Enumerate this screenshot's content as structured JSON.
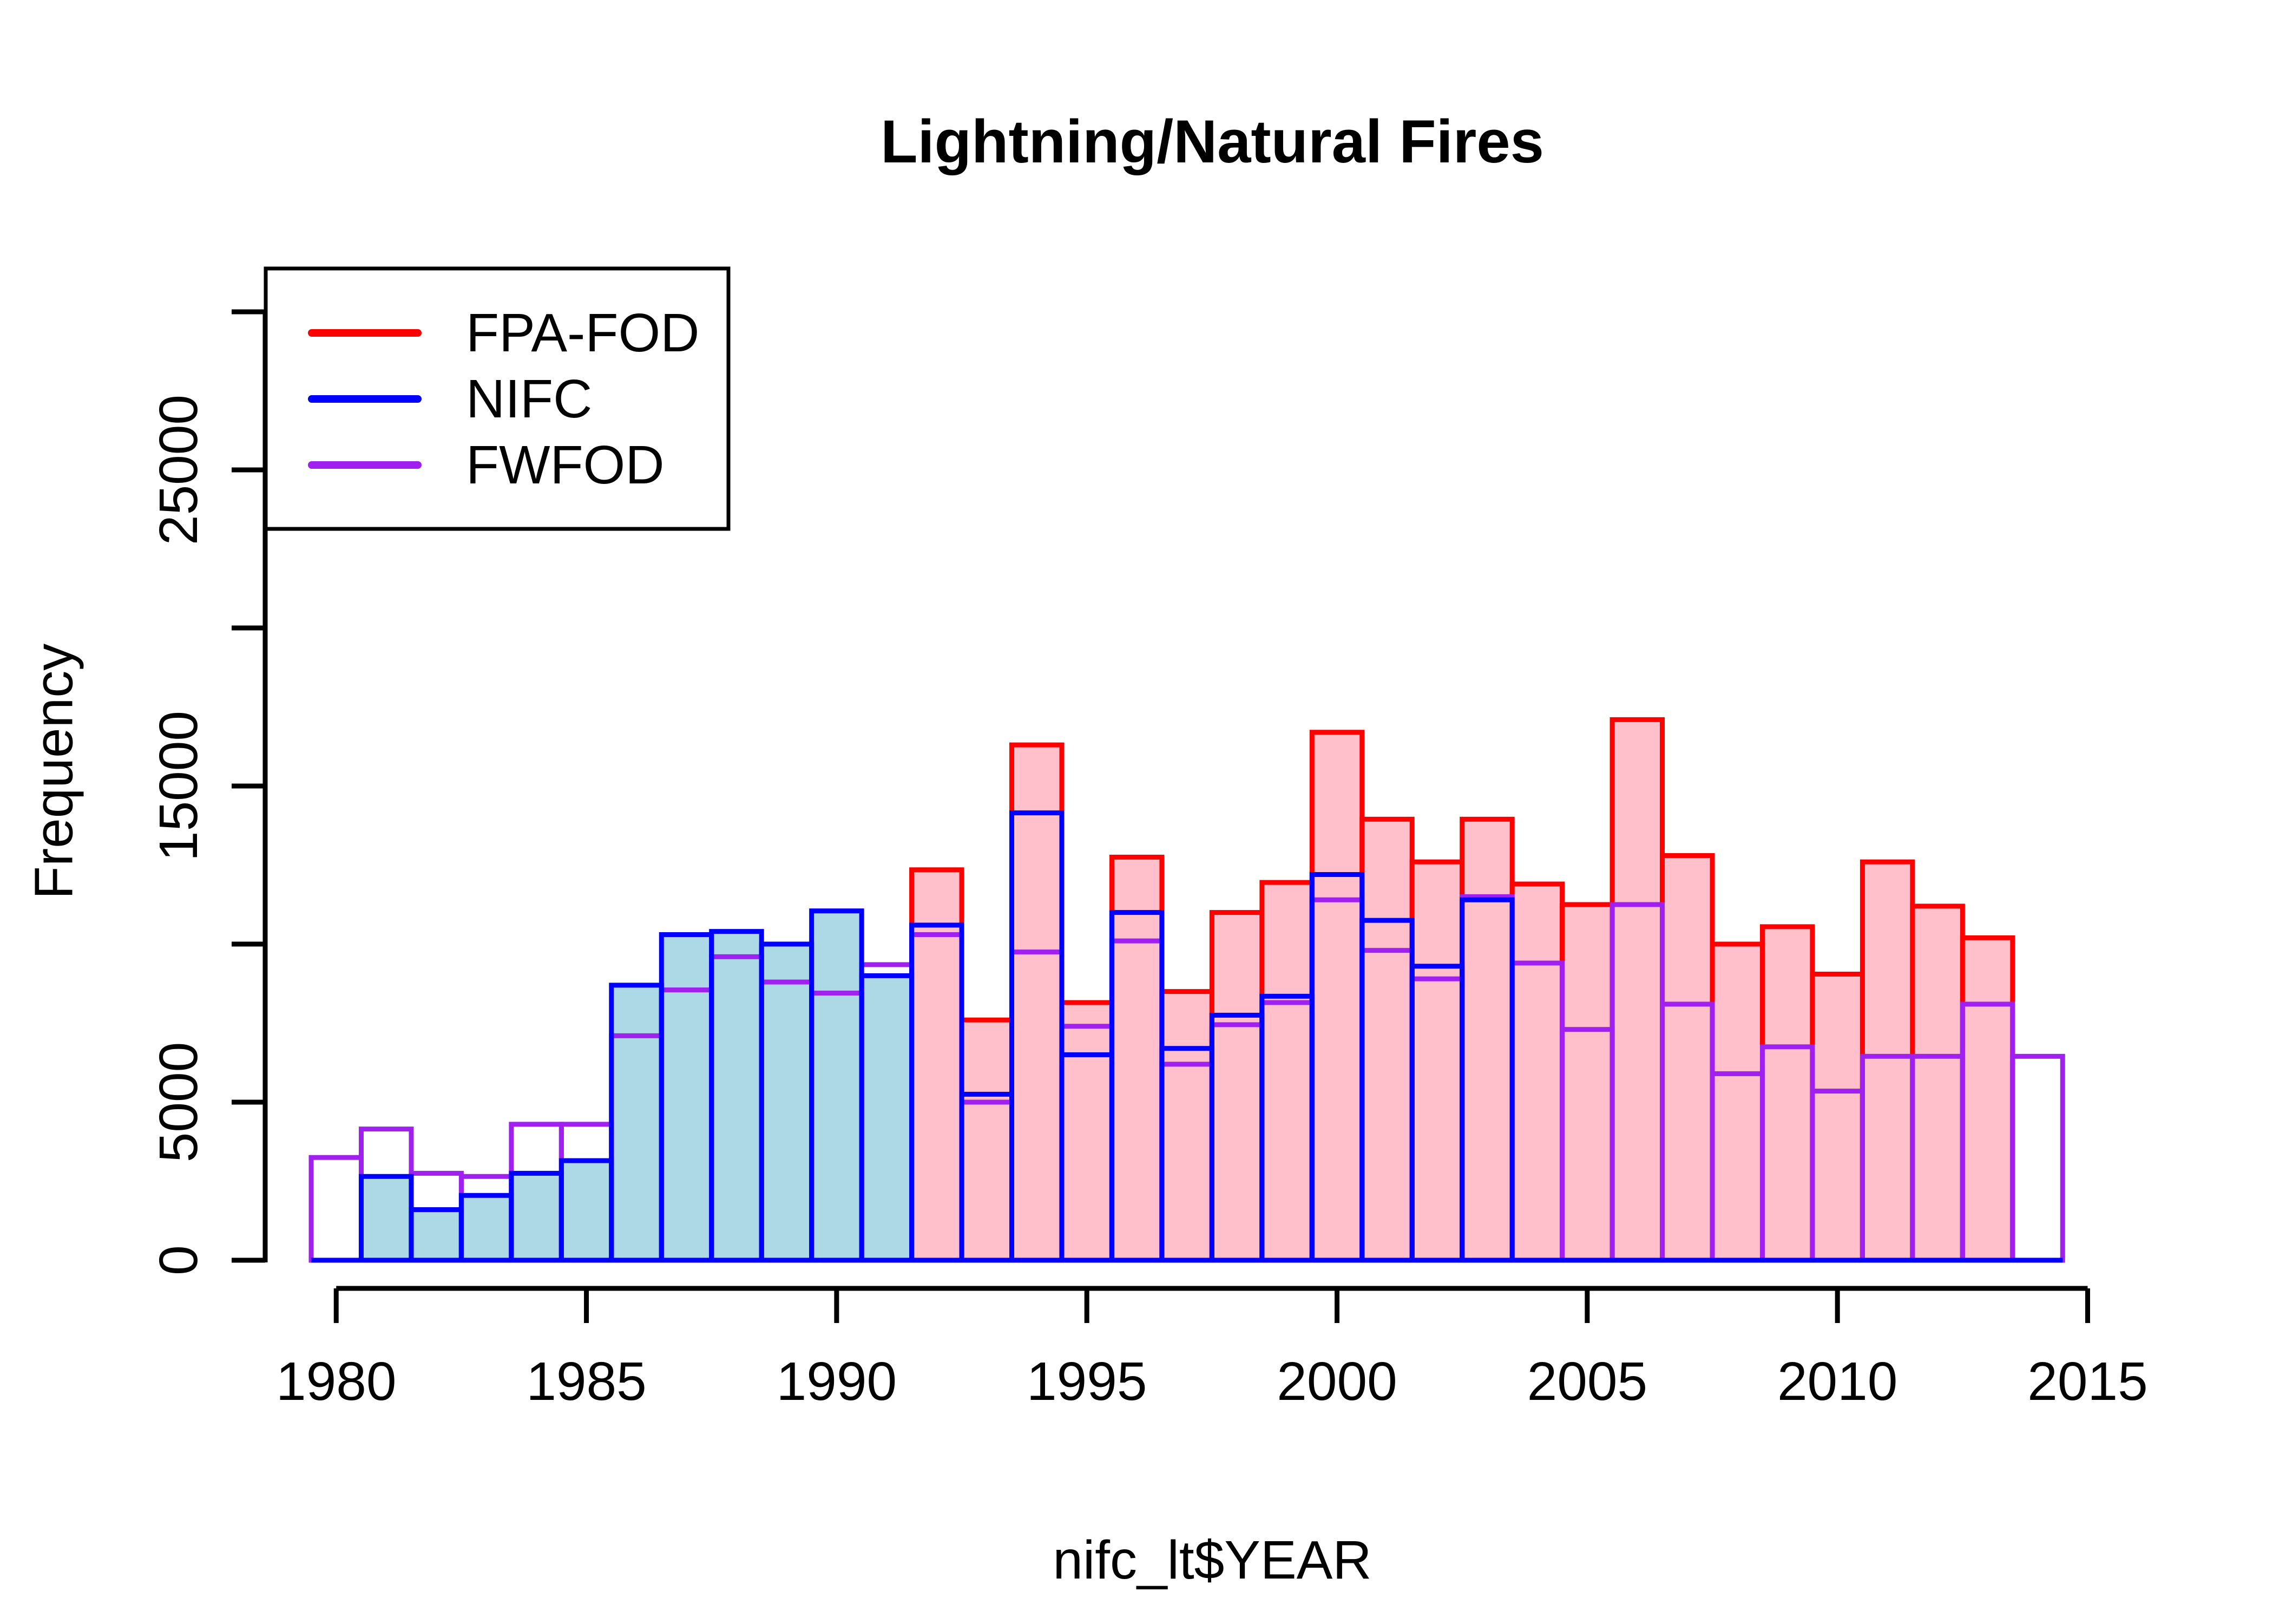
{
  "title": "Lightning/Natural Fires",
  "axes": {
    "x_label": "nifc_lt$YEAR",
    "y_label": "Frequency",
    "x_ticks": [
      1980,
      1985,
      1990,
      1995,
      2000,
      2005,
      2010,
      2015
    ],
    "y_ticks": [
      0,
      5000,
      10000,
      15000,
      20000,
      25000,
      30000
    ],
    "y_tick_labels": [
      "0",
      "5000",
      "",
      "15000",
      "",
      "25000",
      ""
    ]
  },
  "legend": {
    "position": "top-left",
    "entries": [
      {
        "label": "FPA-FOD",
        "color": "#FF0000"
      },
      {
        "label": "NIFC",
        "color": "#0000FF"
      },
      {
        "label": "FWFOD",
        "color": "#A020F0"
      }
    ]
  },
  "colors": {
    "fpa_border": "#FF0000",
    "fpa_fill": "#FFC0CB",
    "nifc_border": "#0000FF",
    "nifc_fill": "#ADD8E6",
    "fwfod_border": "#A020F0",
    "axis": "#000000",
    "background": "#FFFFFF"
  },
  "chart_data": {
    "type": "bar",
    "subtype": "overlaid-histograms",
    "title": "Lightning/Natural Fires",
    "xlabel": "nifc_lt$YEAR",
    "ylabel": "Frequency",
    "xlim": [
      1979.5,
      2015.5
    ],
    "ylim": [
      0,
      30000
    ],
    "grid": false,
    "legend_position": "top-left",
    "bin_width_years": 1,
    "x": [
      1980,
      1981,
      1982,
      1983,
      1984,
      1985,
      1986,
      1987,
      1988,
      1989,
      1990,
      1991,
      1992,
      1993,
      1994,
      1995,
      1996,
      1997,
      1998,
      1999,
      2000,
      2001,
      2002,
      2003,
      2004,
      2005,
      2006,
      2007,
      2008,
      2009,
      2010,
      2011,
      2012,
      2013,
      2014
    ],
    "series": [
      {
        "name": "FPA-FOD",
        "border": "#FF0000",
        "fill": "#FFC0CB",
        "values": [
          null,
          null,
          null,
          null,
          null,
          null,
          null,
          null,
          null,
          null,
          null,
          null,
          12350,
          7600,
          16300,
          8150,
          12750,
          8500,
          11000,
          11950,
          16700,
          13950,
          12600,
          13950,
          11900,
          11250,
          17100,
          12800,
          10000,
          10550,
          9050,
          12600,
          11200,
          10200,
          null
        ]
      },
      {
        "name": "NIFC",
        "border": "#0000FF",
        "fill": "#ADD8E6",
        "values": [
          null,
          2650,
          1600,
          2050,
          2750,
          3150,
          8700,
          10300,
          10400,
          10000,
          11050,
          9000,
          10600,
          5250,
          14150,
          6500,
          11000,
          6700,
          7750,
          8350,
          12200,
          10750,
          9300,
          11400,
          null,
          null,
          null,
          null,
          null,
          null,
          null,
          null,
          null,
          null,
          null
        ]
      },
      {
        "name": "FWFOD",
        "border": "#A020F0",
        "fill": null,
        "values": [
          3250,
          4150,
          2750,
          2650,
          4300,
          4300,
          7100,
          8550,
          9600,
          8800,
          8450,
          9350,
          10300,
          5000,
          9750,
          7400,
          10100,
          6200,
          7450,
          8150,
          11400,
          9800,
          8900,
          11500,
          9400,
          7300,
          11250,
          8100,
          5900,
          6750,
          5350,
          6450,
          6450,
          8100,
          6450
        ]
      }
    ]
  }
}
